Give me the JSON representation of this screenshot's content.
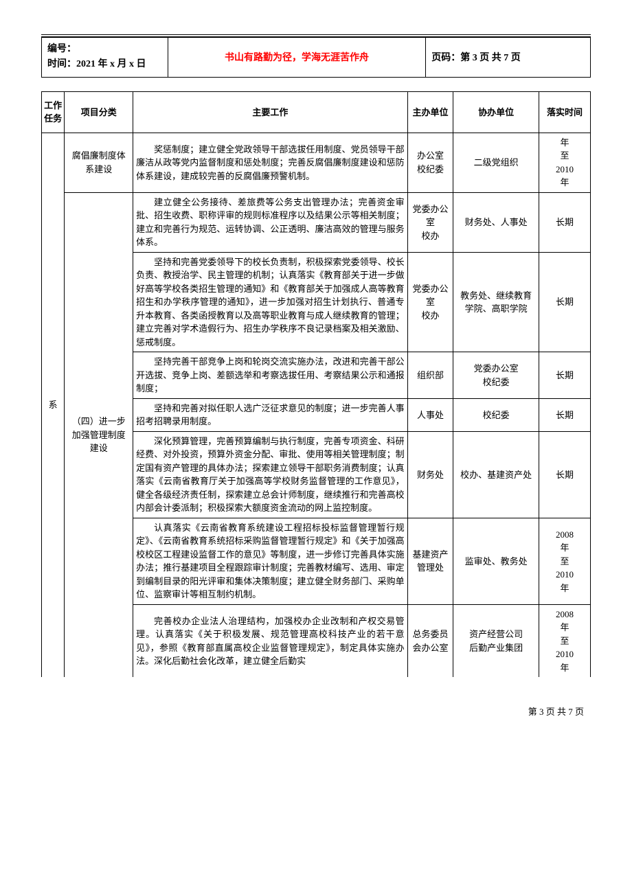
{
  "header": {
    "id_label": "编号：",
    "date_label": "时间：2021 年 x 月 x 日",
    "motto": "书山有路勤为径，学海无涯苦作舟",
    "page_label": "页码：第 3 页 共 7 页"
  },
  "columns": {
    "task": "工作任务",
    "category": "项目分类",
    "work": "主要工作",
    "main_unit": "主办单位",
    "assist_unit": "协办单位",
    "time": "落实时间"
  },
  "task_cell": "系",
  "cat1": "腐倡廉制度体系建设",
  "cat2": "（四）进一步加强管理制度建设",
  "rows": [
    {
      "work": "奖惩制度；建立健全党政领导干部选拔任用制度、党员领导干部廉洁从政等党内监督制度和惩处制度；完善反腐倡廉制度建设和惩防体系建设，建成较完善的反腐倡廉预警机制。",
      "main": "办公室\n校纪委",
      "assist": "二级党组织",
      "time": "年\n至\n2010\n年"
    },
    {
      "work": "建立健全公务接待、差旅费等公务支出管理办法；完善资金审批、招生收费、职称评审的规则标准程序以及结果公示等相关制度；建立和完善行为规范、运转协调、公正透明、廉洁高效的管理与服务体系。",
      "main": "党委办公室\n校办",
      "assist": "财务处、人事处",
      "time": "长期"
    },
    {
      "work": "坚持和完善党委领导下的校长负责制，积极探索党委领导、校长负责、教授治学、民主管理的机制；认真落实《教育部关于进一步做好高等学校各类招生管理的通知》和《教育部关于加强成人高等教育招生和办学秩序管理的通知》，进一步加强对招生计划执行、普通专升本教育、各类函授教育以及高等职业教育与成人继续教育的管理；建立完善对学术造假行为、招生办学秩序不良记录档案及相关激励、惩戒制度。",
      "main": "党委办公室\n校办",
      "assist": "教务处、继续教育学院、高职学院",
      "time": "长期"
    },
    {
      "work": "坚持完善干部竞争上岗和轮岗交流实施办法，改进和完善干部公开选拔、竞争上岗、差额选举和考察选拔任用、考察结果公示和通报制度；",
      "main": "组织部",
      "assist": "党委办公室\n校纪委",
      "time": "长期"
    },
    {
      "work": "坚持和完善对拟任职人选广泛征求意见的制度；进一步完善人事招考招聘录用制度。",
      "main": "人事处",
      "assist": "校纪委",
      "time": "长期"
    },
    {
      "work": "深化预算管理，完善预算编制与执行制度，完善专项资金、科研经费、对外投资，预算外资金分配、审批、使用等相关管理制度；制定国有资产管理的具体办法；探索建立领导干部职务消费制度；认真落实《云南省教育厅关于加强高等学校财务监督管理的工作意见》，健全各级经济责任制，探索建立总会计师制度，继续推行和完善高校内部会计委派制；积极探索大额度资金流动的网上监控制度。",
      "main": "财务处",
      "assist": "校办、基建资产处",
      "time": "长期"
    },
    {
      "work": "认真落实《云南省教育系统建设工程招标投标监督管理暂行规定》、《云南省教育系统招标采购监督管理暂行规定》和《关于加强高校校区工程建设监督工作的意见》等制度，进一步修订完善具体实施办法；推行基建项目全程跟踪审计制度；完善教材编写、选用、审定到编制目录的阳光评审和集体决策制度；建立健全财务部门、采购单位、监察审计等相互制约机制。",
      "main": "基建资产管理处",
      "assist": "监审处、教务处",
      "time": "2008\n年\n至\n2010\n年"
    },
    {
      "work": "完善校办企业法人治理结构，加强校办企业改制和产权交易管理。认真落实《关于积极发展、规范管理高校科技产业的若干意见》，参照《教育部直属高校企业监督管理规定》，制定具体实施办法。深化后勤社会化改革，建立健全后勤实",
      "main": "总务委员会办公室",
      "assist": "资产经营公司\n后勤产业集团",
      "time": "2008\n年\n至\n2010\n年"
    }
  ],
  "footer": "第 3 页 共 7 页",
  "colors": {
    "motto": "#ff0000",
    "text": "#000000",
    "border": "#000000",
    "background": "#ffffff"
  }
}
